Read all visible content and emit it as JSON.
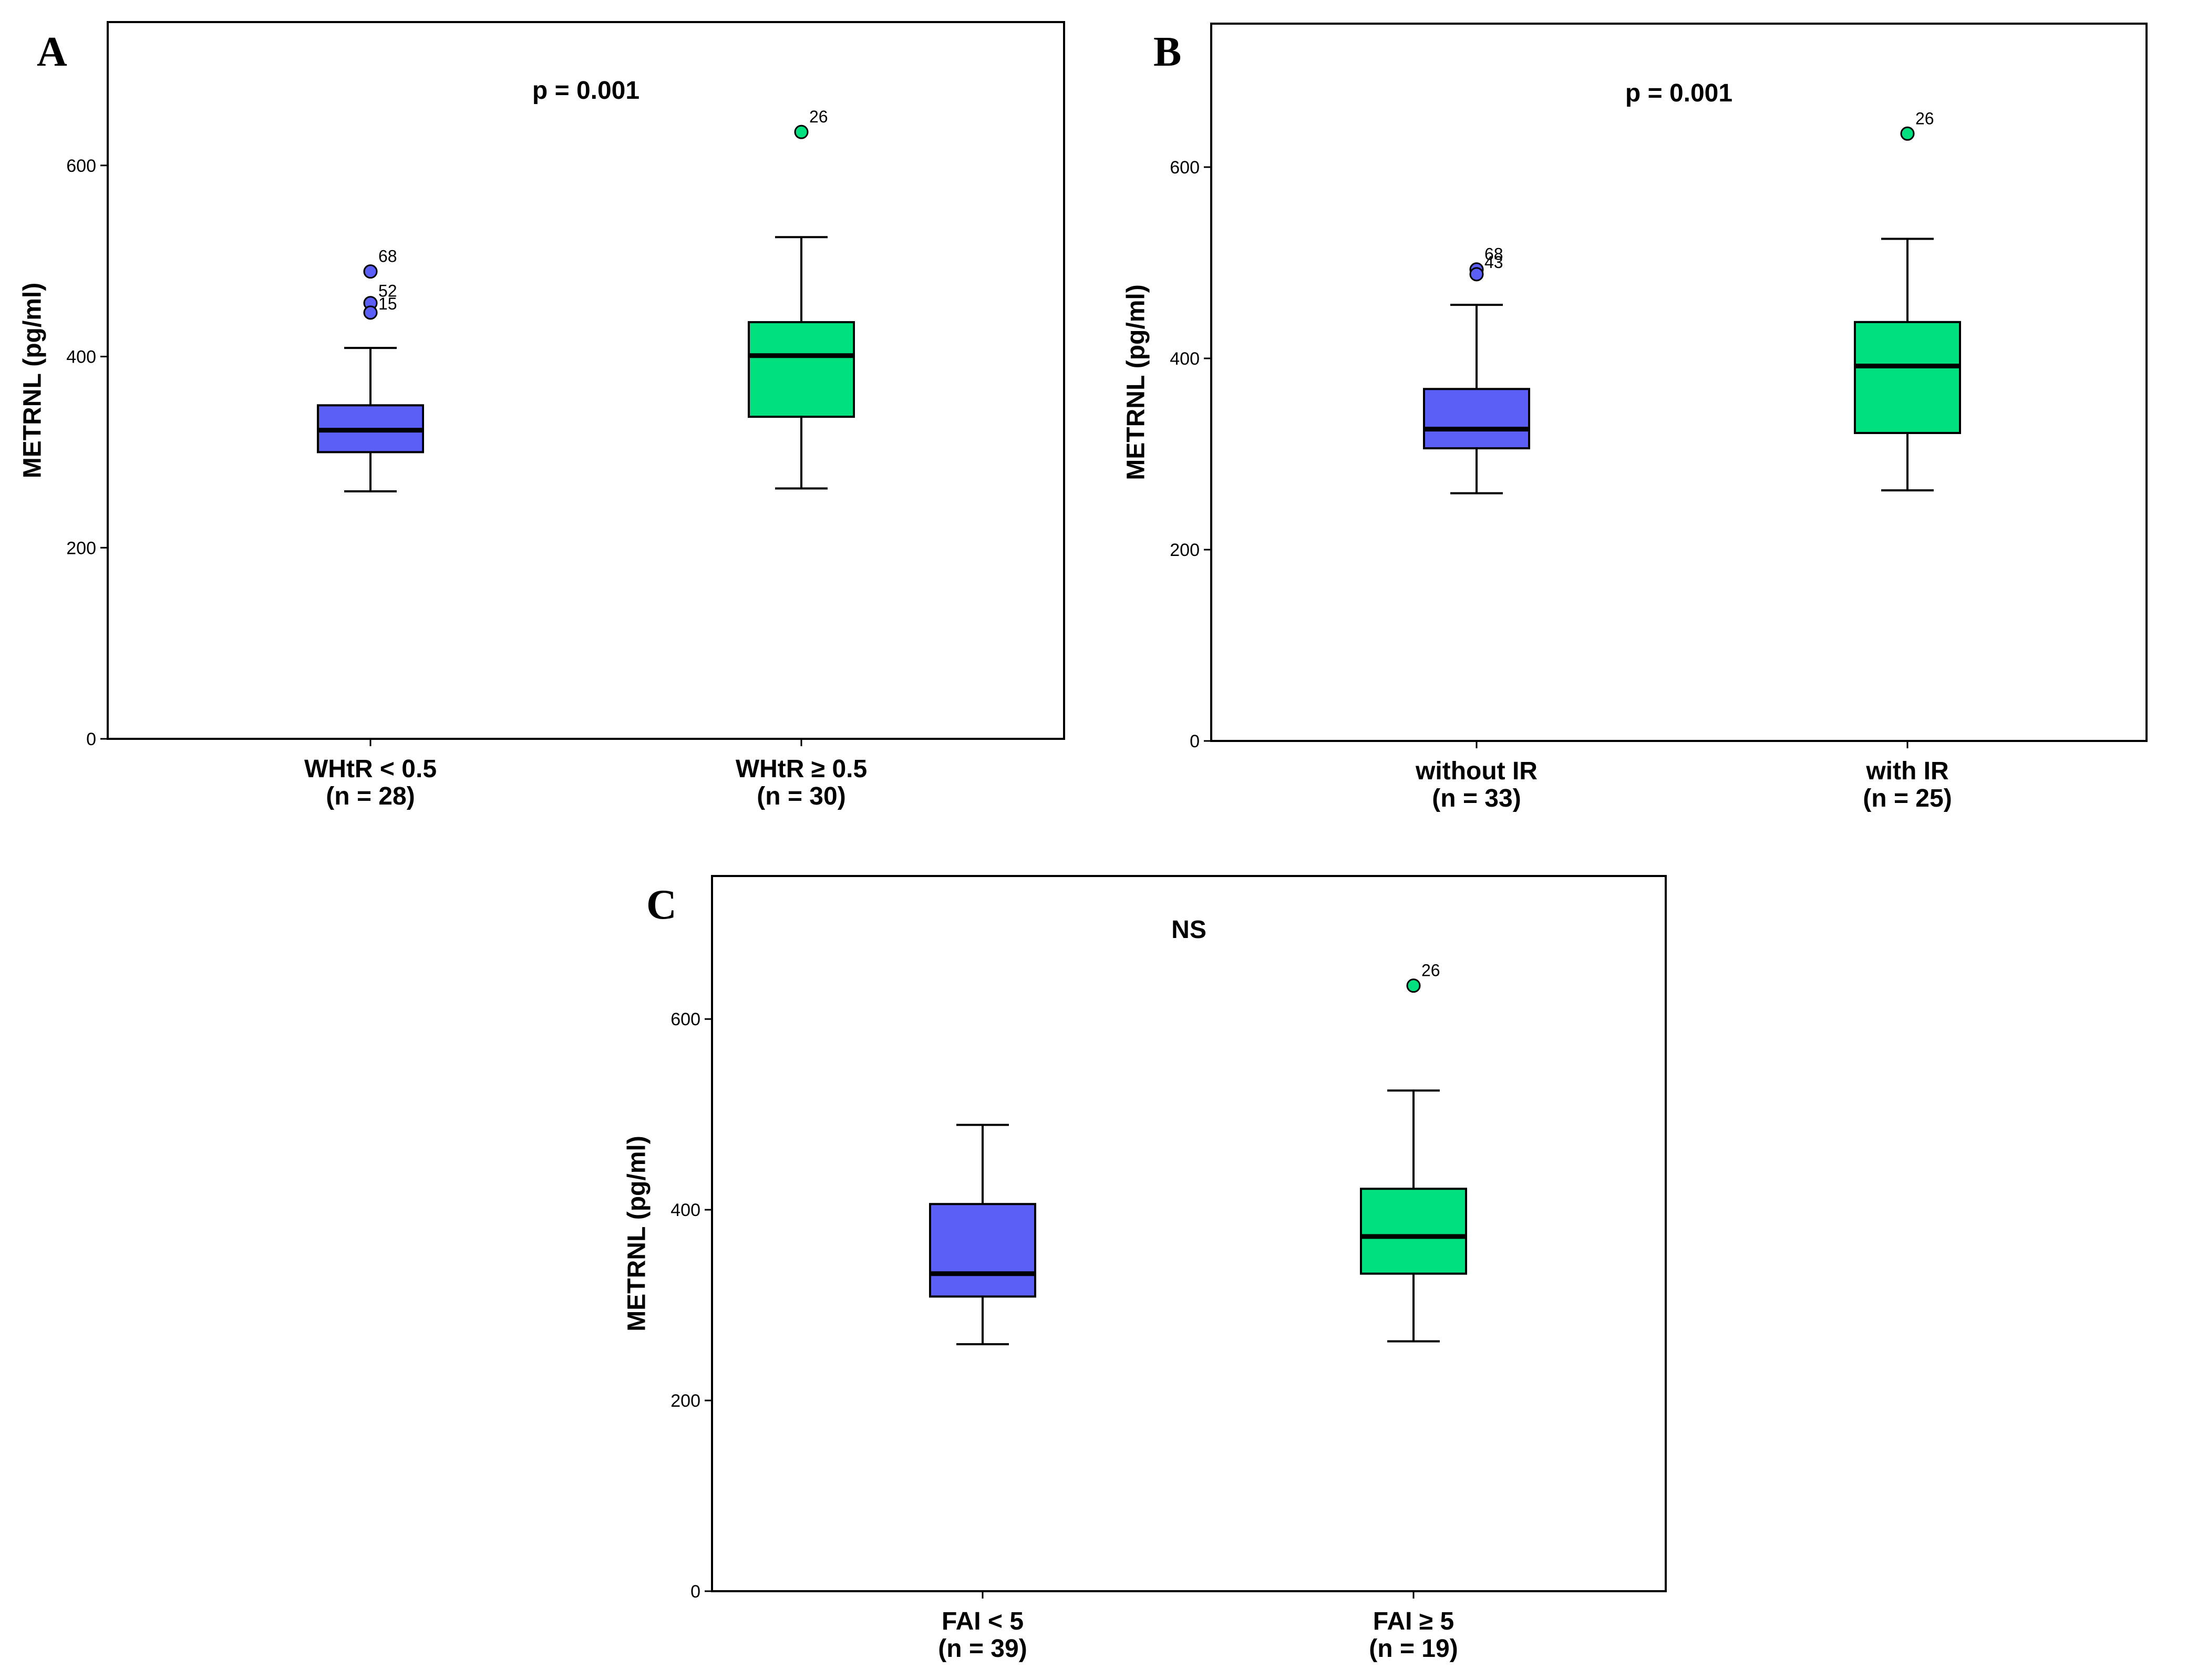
{
  "colors": {
    "group1": "#5b5ff5",
    "group2": "#00e07e",
    "line": "#000000"
  },
  "chart_data": [
    {
      "panel": "A",
      "type": "box",
      "title": "p = 0.001",
      "ylabel": "METRNL (pg/ml)",
      "ylim": [
        0,
        750
      ],
      "yticks": [
        0,
        200,
        400,
        600
      ],
      "categories": [
        {
          "name": "WHtR < 0.5",
          "n": "(n = 28)",
          "color": "#5b5ff5",
          "whisker_low": 259,
          "q1": 300,
          "median": 323,
          "q3": 349,
          "whisker_high": 409,
          "outliers": [
            {
              "value": 489,
              "label": "68"
            },
            {
              "value": 456,
              "label": "52"
            },
            {
              "value": 446,
              "label": "15"
            }
          ]
        },
        {
          "name": "WHtR ≥ 0.5",
          "n": "(n = 30)",
          "color": "#00e07e",
          "whisker_low": 262,
          "q1": 337,
          "median": 401,
          "q3": 436,
          "whisker_high": 525,
          "outliers": [
            {
              "value": 635,
              "label": "26"
            }
          ]
        }
      ]
    },
    {
      "panel": "B",
      "type": "box",
      "title": "p = 0.001",
      "ylabel": "METRNL (pg/ml)",
      "ylim": [
        0,
        750
      ],
      "yticks": [
        0,
        200,
        400,
        600
      ],
      "categories": [
        {
          "name": "without IR",
          "n": "(n = 33)",
          "color": "#5b5ff5",
          "whisker_low": 259,
          "q1": 306,
          "median": 326,
          "q3": 368,
          "whisker_high": 456,
          "outliers": [
            {
              "value": 493,
              "label": "68"
            },
            {
              "value": 488,
              "label": "43"
            }
          ]
        },
        {
          "name": "with IR",
          "n": "(n = 25)",
          "color": "#00e07e",
          "whisker_low": 262,
          "q1": 322,
          "median": 392,
          "q3": 438,
          "whisker_high": 525,
          "outliers": [
            {
              "value": 635,
              "label": "26"
            }
          ]
        }
      ]
    },
    {
      "panel": "C",
      "type": "box",
      "title": "NS",
      "ylabel": "METRNL (pg/ml)",
      "ylim": [
        0,
        750
      ],
      "yticks": [
        0,
        200,
        400,
        600
      ],
      "categories": [
        {
          "name": "FAI < 5",
          "n": "(n = 39)",
          "color": "#5b5ff5",
          "whisker_low": 259,
          "q1": 309,
          "median": 333,
          "q3": 406,
          "whisker_high": 489,
          "outliers": []
        },
        {
          "name": "FAI ≥ 5",
          "n": "(n = 19)",
          "color": "#00e07e",
          "whisker_low": 262,
          "q1": 333,
          "median": 372,
          "q3": 422,
          "whisker_high": 525,
          "outliers": [
            {
              "value": 635,
              "label": "26"
            }
          ]
        }
      ]
    }
  ]
}
